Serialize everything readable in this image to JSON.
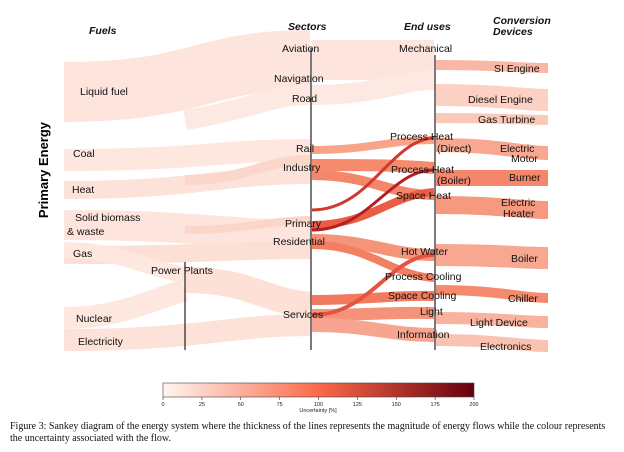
{
  "y_axis_title": "Primary Energy",
  "headers": {
    "fuels": "Fuels",
    "sectors": "Sectors",
    "end_uses": "End uses",
    "devices_line1": "Conversion",
    "devices_line2": "Devices"
  },
  "fuels": [
    "Liquid fuel",
    "Coal",
    "Heat",
    "Solid biomass",
    "& waste",
    "Gas",
    "Nuclear",
    "Electricity"
  ],
  "intermediate": "Power Plants",
  "sectors": [
    "Aviation",
    "Navigation",
    "Road",
    "Rail",
    "Industry",
    "Primary",
    "Residential",
    "Services"
  ],
  "end_uses": [
    "Mechanical",
    "Process Heat",
    "(Direct)",
    "Process Heat",
    "(Boiler)",
    "Space Heat",
    "Hot Water",
    "Process Cooling",
    "Space Cooling",
    "Light",
    "Information"
  ],
  "devices": [
    "SI Engine",
    "Diesel Engine",
    "Gas Turbine",
    "Electric",
    "Motor",
    "Burner",
    "Electric",
    "Heater",
    "Boiler",
    "Chiller",
    "Light Device",
    "Electronics"
  ],
  "colorbar": {
    "label": "Uncertainty [%]",
    "ticks": [
      "0",
      "25",
      "50",
      "75",
      "100",
      "125",
      "150",
      "175",
      "200"
    ],
    "range": [
      0,
      200
    ],
    "color_low": "#fff5f0",
    "color_mid": "#fb6a4a",
    "color_high": "#67000d"
  },
  "caption": "Figure 3: Sankey diagram of the energy system where the thickness of the lines represents the magnitude of energy flows while the colour represents the uncertainty associated with the flow."
}
